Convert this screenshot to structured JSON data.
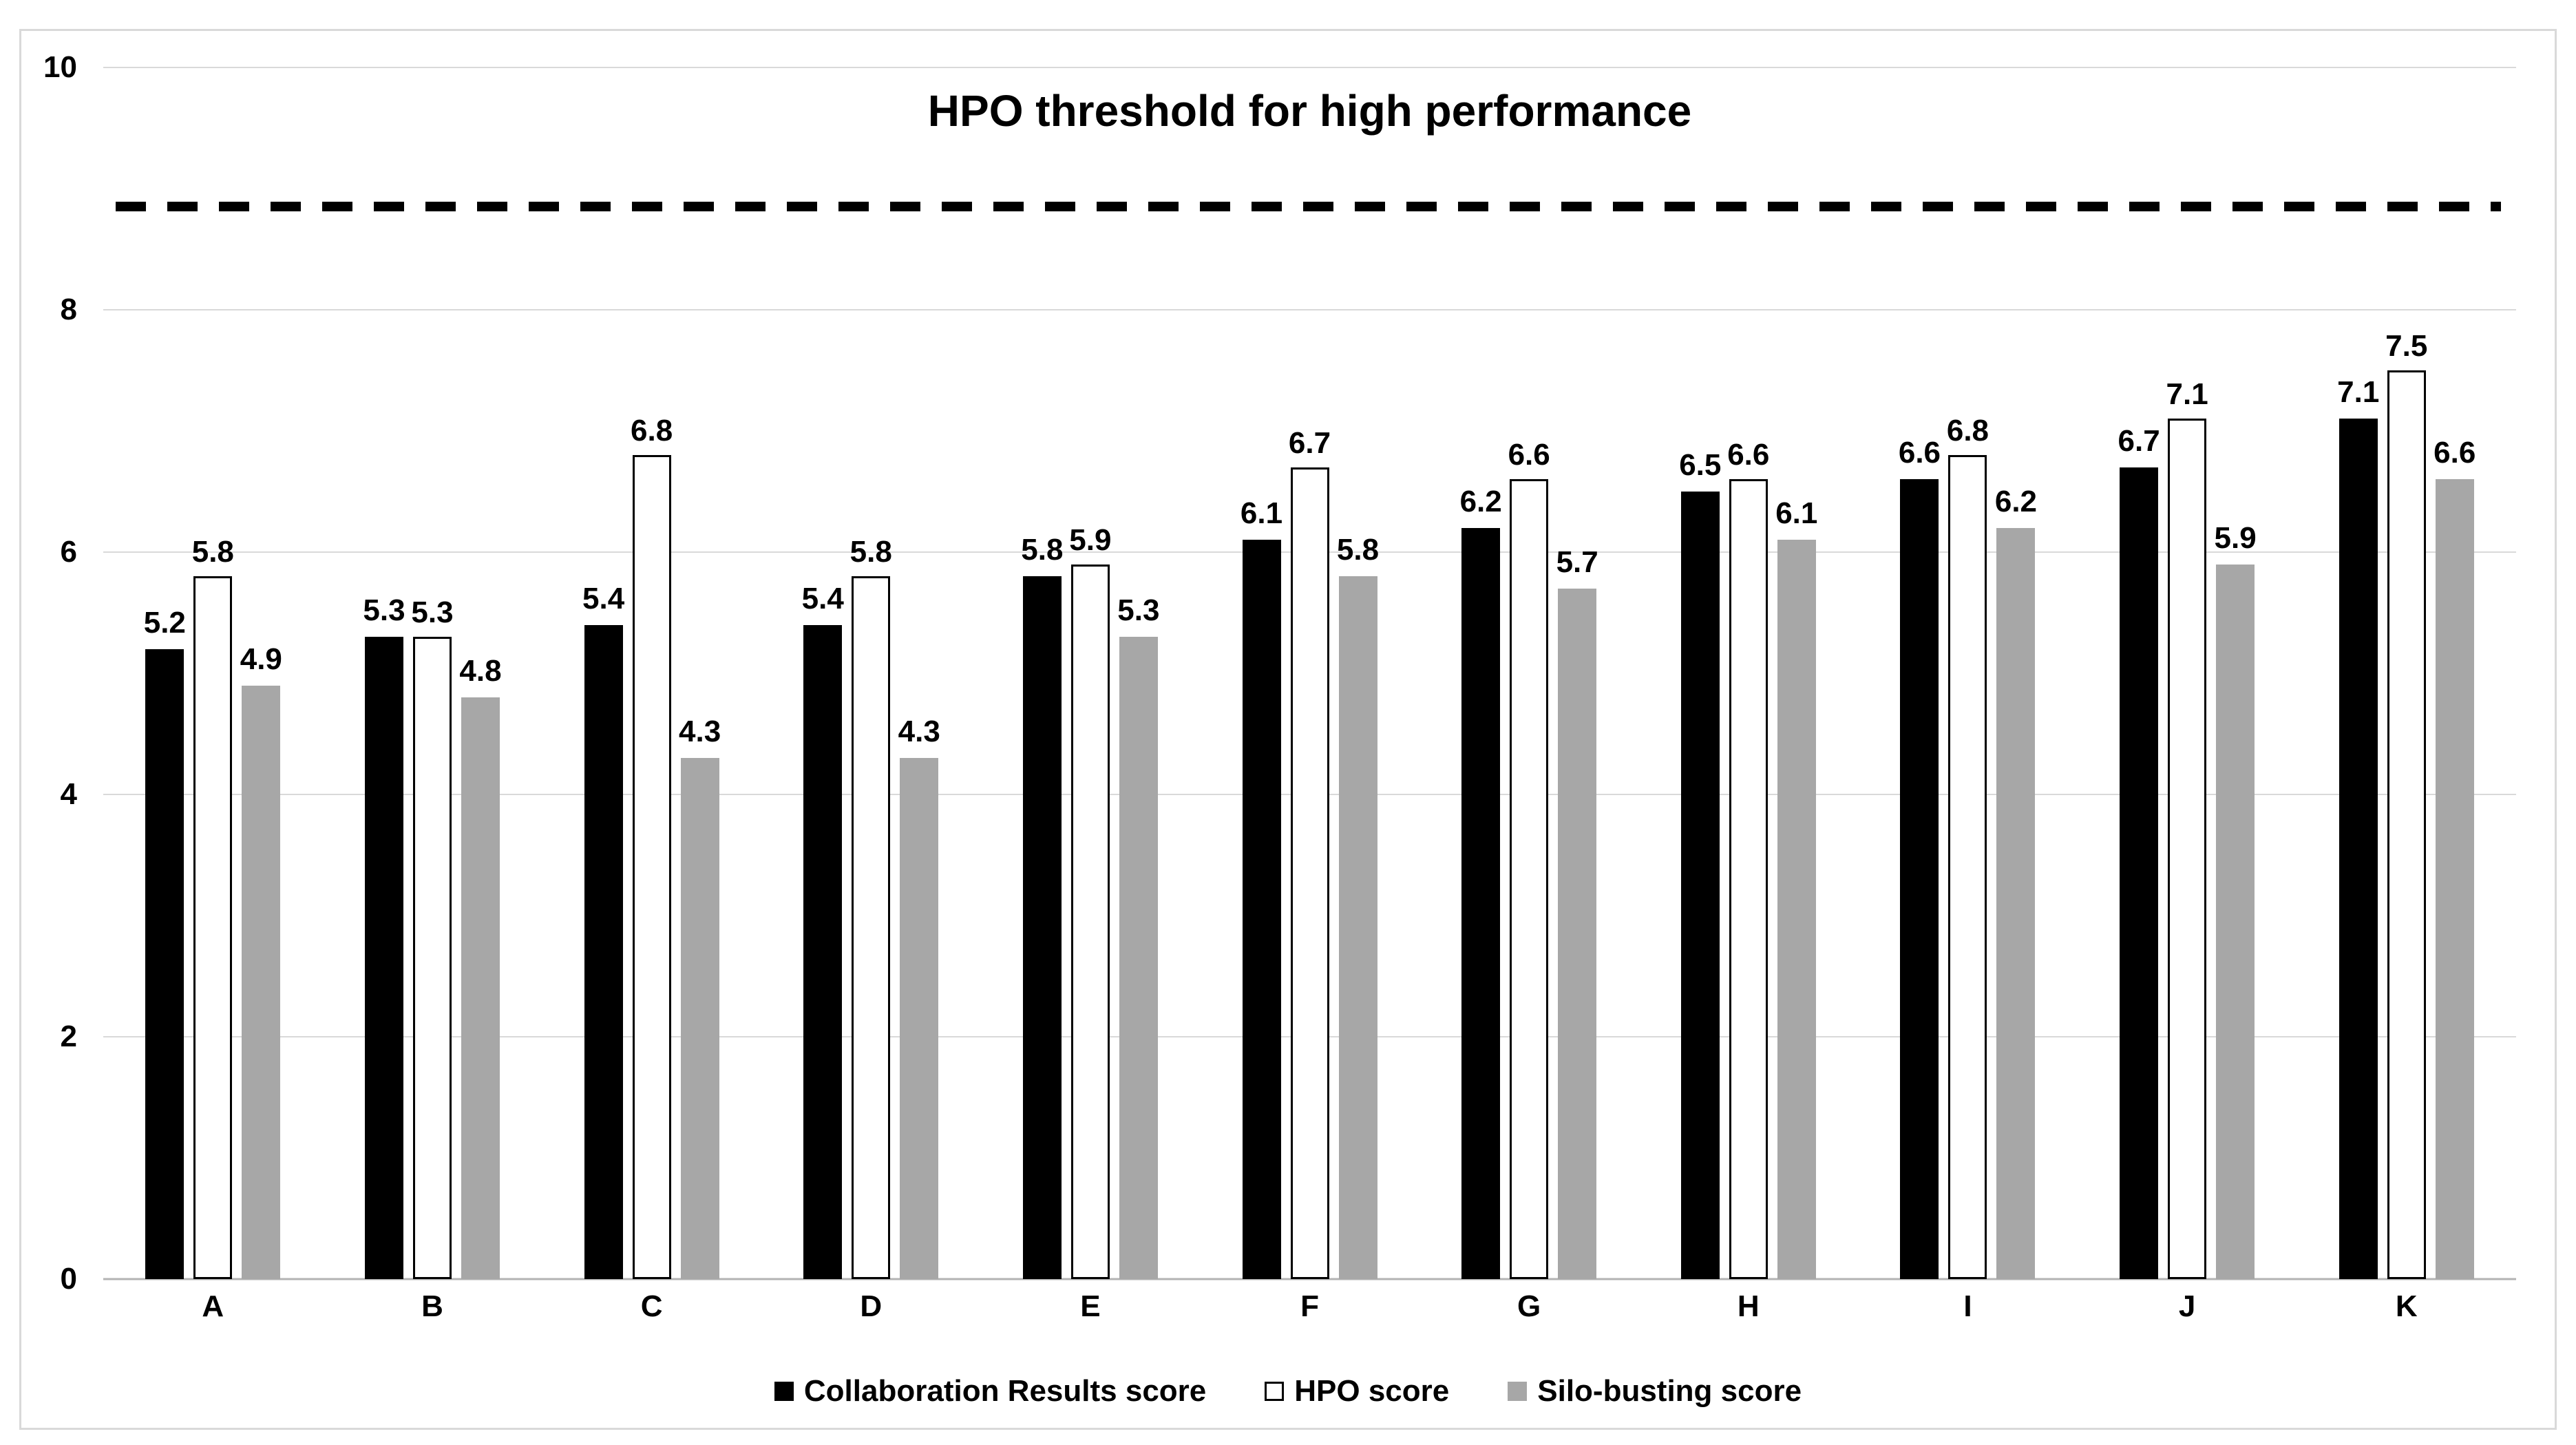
{
  "chart_data": {
    "type": "bar",
    "title": "HPO threshold for high performance",
    "categories": [
      "A",
      "B",
      "C",
      "D",
      "E",
      "F",
      "G",
      "H",
      "I",
      "J",
      "K"
    ],
    "series": [
      {
        "name": "Collaboration Results score",
        "color": "#000000",
        "border_color": "#000000",
        "values": [
          5.2,
          5.3,
          5.4,
          5.4,
          5.8,
          6.1,
          6.2,
          6.5,
          6.6,
          6.7,
          7.1
        ]
      },
      {
        "name": "HPO score",
        "color": "#ffffff",
        "border_color": "#000000",
        "values": [
          5.8,
          5.3,
          6.8,
          5.8,
          5.9,
          6.7,
          6.6,
          6.6,
          6.8,
          7.1,
          7.5
        ]
      },
      {
        "name": "Silo-busting score",
        "color": "#a7a7a7",
        "border_color": "#a7a7a7",
        "values": [
          4.9,
          4.8,
          4.3,
          4.3,
          5.3,
          5.8,
          5.7,
          6.1,
          6.2,
          5.9,
          6.6
        ]
      }
    ],
    "y_axis": {
      "min": 0,
      "max": 10,
      "tick_step": 2,
      "ticks": [
        "0",
        "2",
        "4",
        "6",
        "8",
        "10"
      ],
      "tick_values": [
        0,
        2,
        4,
        6,
        8,
        10
      ],
      "gridlines": true,
      "gridline_color": "#d9d9d9",
      "axis_line_color": "#b3b3b3"
    },
    "threshold_line": {
      "value": 8.85,
      "style": "dashed",
      "color": "#000000",
      "label": "HPO threshold for high performance"
    },
    "legend": {
      "position": "bottom"
    },
    "value_label_format": "one_decimal",
    "frame_color": "#d9d9d9"
  }
}
